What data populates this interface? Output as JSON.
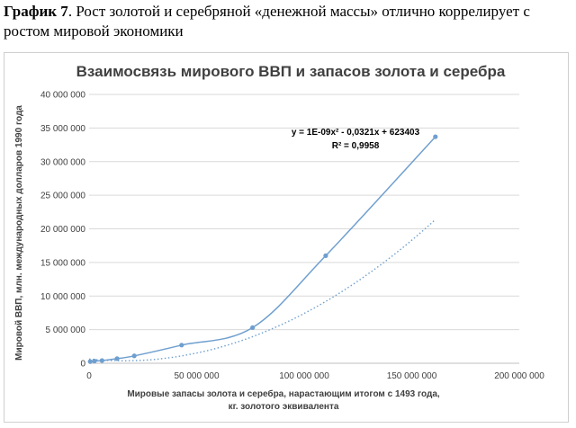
{
  "caption": {
    "label": "График 7",
    "text": ". Рост золотой и серебряной «денежной массы» отлично коррелирует с ростом мировой экономики"
  },
  "chart_data": {
    "type": "scatter",
    "title": "Взаимосвязь мирового ВВП и запасов золота и серебра",
    "xlabel_line1": "Мировые запасы золота и серебра, нарастающим итогом с 1493 года,",
    "xlabel_line2": "кг. золотого эквивалента",
    "ylabel": "Мировой ВВП, млн. международных долларов 1990 года",
    "xlim": [
      0,
      200000000
    ],
    "ylim": [
      0,
      40000000
    ],
    "x_ticks": [
      0,
      50000000,
      100000000,
      150000000,
      200000000
    ],
    "x_tick_labels": [
      "0",
      "50 000 000",
      "100 000 000",
      "150 000 000",
      "200 000 000"
    ],
    "y_ticks": [
      0,
      5000000,
      10000000,
      15000000,
      20000000,
      25000000,
      30000000,
      35000000,
      40000000
    ],
    "y_tick_labels": [
      "0",
      "5 000 000",
      "10 000 000",
      "15 000 000",
      "20 000 000",
      "25 000 000",
      "30 000 000",
      "35 000 000",
      "40 000 000"
    ],
    "grid": "horizontal",
    "series": [
      {
        "x": [
          500000,
          2500000,
          6000000,
          13000000,
          21000000,
          43000000,
          76000000,
          110000000,
          161000000
        ],
        "y": [
          250000,
          330000,
          400000,
          690000,
          1100000,
          2700000,
          5300000,
          16000000,
          33700000
        ],
        "color": "#6f9fcf"
      }
    ],
    "trendline": {
      "kind": "polynomial-2",
      "coefficients": [
        1e-09,
        -0.0321,
        623403
      ],
      "color": "#6f9fcf"
    },
    "annotation": {
      "equation": "y = 1E-09x² - 0,0321x + 623403",
      "r2": "R² = 0,9958"
    }
  }
}
